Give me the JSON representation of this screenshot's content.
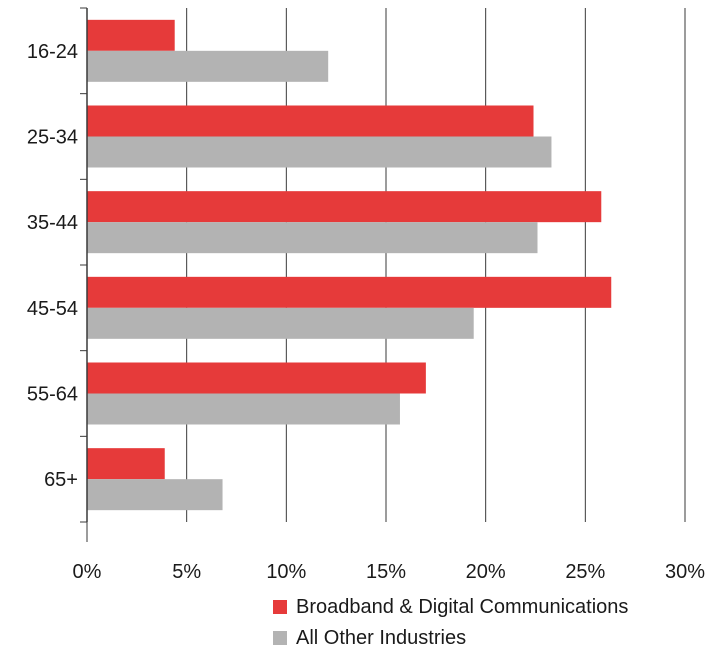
{
  "chart_data": {
    "type": "bar",
    "orientation": "horizontal",
    "categories": [
      "16-24",
      "25-34",
      "35-44",
      "45-54",
      "55-64",
      "65+"
    ],
    "series": [
      {
        "name": "Broadband & Digital Communications",
        "color": "#e63a3a",
        "values": [
          4.4,
          22.4,
          25.8,
          26.3,
          17.0,
          3.9
        ]
      },
      {
        "name": "All Other Industries",
        "color": "#b3b3b3",
        "values": [
          12.1,
          23.3,
          22.6,
          19.4,
          15.7,
          6.8
        ]
      }
    ],
    "x_ticks": [
      "0%",
      "5%",
      "10%",
      "15%",
      "20%",
      "25%",
      "30%"
    ],
    "xlim": [
      0,
      30
    ],
    "grid": "vertical",
    "legend_position": "bottom-right"
  }
}
